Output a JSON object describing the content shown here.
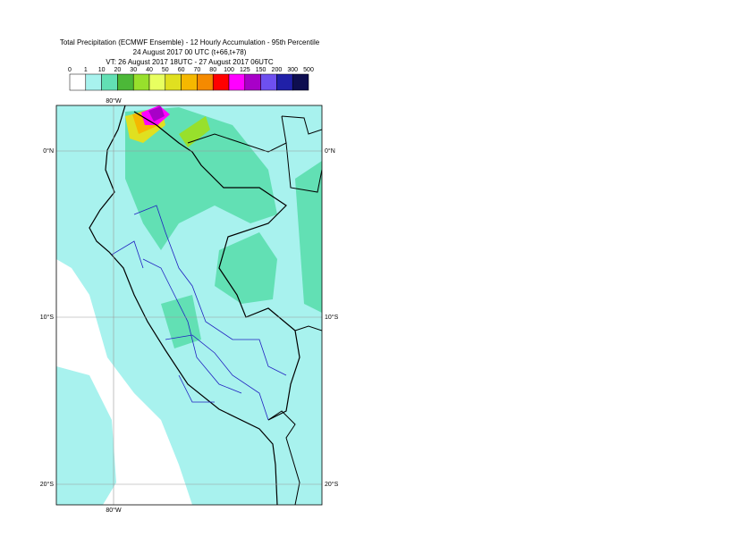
{
  "header": {
    "title_lines": [
      "Total Precipitation (ECMWF Ensemble) - 12 Hourly Accumulation - 95th Percentile",
      "24 August 2017 00 UTC (t+66,t+78)",
      "VT: 26 August 2017 18UTC - 27 August 2017 06UTC"
    ]
  },
  "colorbar": {
    "labels": [
      "0",
      "1",
      "10",
      "20",
      "30",
      "40",
      "50",
      "60",
      "70",
      "80",
      "100",
      "125",
      "150",
      "200",
      "300",
      "500"
    ],
    "colors": [
      "#ffffff",
      "#a8f2ee",
      "#62e0b4",
      "#4cb838",
      "#98e02c",
      "#e8ff60",
      "#e0e020",
      "#f5b800",
      "#f58a00",
      "#ff0000",
      "#ff00ff",
      "#a800c8",
      "#6e50f0",
      "#2020a8",
      "#0e0e50"
    ]
  },
  "map": {
    "lat_labels": [
      "0°N",
      "10°S",
      "20°S"
    ],
    "lon_labels": [
      "80°W"
    ]
  }
}
